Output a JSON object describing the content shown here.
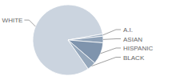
{
  "chart_data": {
    "type": "pie",
    "categories": [
      "WHITE",
      "A.I.",
      "ASIAN",
      "HISPANIC",
      "BLACK"
    ],
    "values": [
      82,
      1,
      3,
      10,
      4
    ],
    "colors": [
      "#cbd4df",
      "#9fb0c3",
      "#8fa2b8",
      "#7f94ad",
      "#95a7bb"
    ]
  }
}
